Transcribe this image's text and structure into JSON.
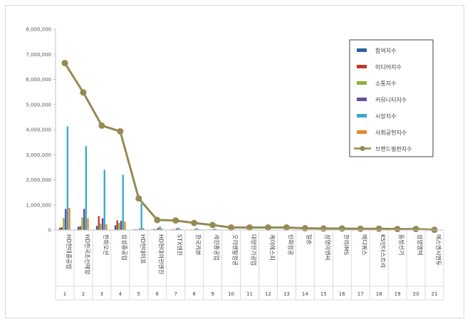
{
  "colors": {
    "participation": "#2f5fa0",
    "media": "#c0392b",
    "communication": "#8cb33f",
    "community": "#6b4c9a",
    "market": "#3aa9c8",
    "social": "#e8862a",
    "brand": "#948a54"
  },
  "chart_data": {
    "type": "bar",
    "title": "",
    "xlabel": "",
    "ylabel": "",
    "ylim": [
      0,
      8000000
    ],
    "yticks": [
      "0",
      "1,000,000",
      "2,000,000",
      "3,000,000",
      "4,000,000",
      "5,000,000",
      "6,000,000",
      "7,000,000",
      "8,000,000"
    ],
    "categories": [
      "HD현대중공업",
      "HD한국조선해양",
      "한화오션",
      "삼성중공업",
      "HD현대미포",
      "HD현대마린엔진",
      "STX엔진",
      "한국카본",
      "세진중공업",
      "오리엔탈정공",
      "대양전기공업",
      "케이에스피",
      "인화정공",
      "일승",
      "삼영이엔씨",
      "한라IMS",
      "메디쿼스",
      "KS인더스트리",
      "동방선기",
      "삼영엠텍",
      "에스엔시엔듀"
    ],
    "ranks": [
      "1",
      "2",
      "3",
      "4",
      "5",
      "6",
      "7",
      "8",
      "9",
      "10",
      "11",
      "12",
      "13",
      "14",
      "15",
      "16",
      "17",
      "18",
      "19",
      "20",
      "21"
    ],
    "series": [
      {
        "name": "참여지수",
        "type": "bar",
        "values": [
          90000,
          130000,
          160000,
          190000,
          20000,
          20000,
          15000,
          10000,
          10000,
          5000,
          5000,
          5000,
          4000,
          3000,
          3000,
          2000,
          2000,
          2000,
          2000,
          1000,
          1000
        ]
      },
      {
        "name": "미디어지수",
        "type": "bar",
        "values": [
          110000,
          150000,
          560000,
          380000,
          30000,
          40000,
          30000,
          20000,
          20000,
          10000,
          8000,
          8000,
          7000,
          5000,
          5000,
          4000,
          4000,
          3000,
          3000,
          2000,
          2000
        ]
      },
      {
        "name": "소통지수",
        "type": "bar",
        "values": [
          480000,
          500000,
          260000,
          280000,
          20000,
          30000,
          20000,
          15000,
          10000,
          8000,
          6000,
          6000,
          5000,
          4000,
          4000,
          3000,
          3000,
          3000,
          2000,
          2000,
          1000
        ]
      },
      {
        "name": "커뮤니티지수",
        "type": "bar",
        "values": [
          840000,
          840000,
          470000,
          370000,
          50000,
          90000,
          60000,
          40000,
          30000,
          10000,
          10000,
          10000,
          8000,
          6000,
          6000,
          5000,
          5000,
          4000,
          4000,
          3000,
          2000
        ]
      },
      {
        "name": "시장지수",
        "type": "bar",
        "values": [
          4130000,
          3340000,
          2400000,
          2200000,
          1050000,
          140000,
          100000,
          80000,
          60000,
          20000,
          15000,
          12000,
          10000,
          8000,
          8000,
          6000,
          6000,
          5000,
          5000,
          4000,
          3000
        ]
      },
      {
        "name": "사회공헌지수",
        "type": "bar",
        "values": [
          880000,
          470000,
          220000,
          340000,
          80000,
          60000,
          40000,
          30000,
          20000,
          8000,
          6000,
          5000,
          4000,
          3000,
          3000,
          2000,
          2000,
          2000,
          2000,
          1000,
          1000
        ]
      },
      {
        "name": "브랜드평판지수",
        "type": "line",
        "values": [
          6650000,
          5480000,
          4160000,
          3930000,
          1260000,
          400000,
          380000,
          280000,
          200000,
          100000,
          100000,
          100000,
          100000,
          70000,
          60000,
          60000,
          50000,
          50000,
          40000,
          40000,
          10000
        ]
      }
    ],
    "grid": false,
    "legend": "top-right"
  }
}
